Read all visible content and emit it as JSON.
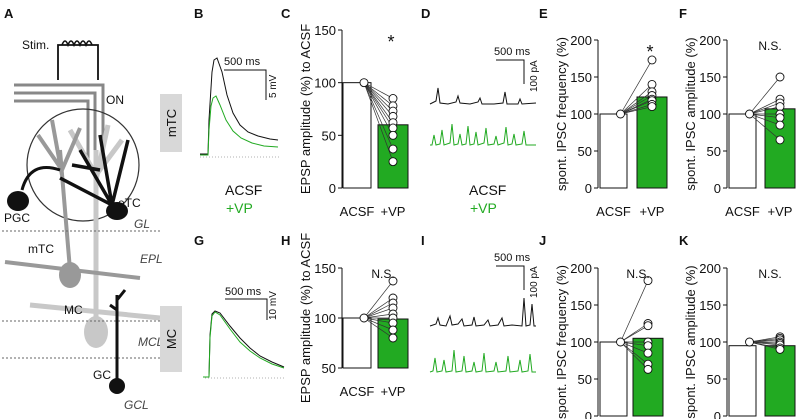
{
  "panel_letters": [
    "A",
    "B",
    "C",
    "D",
    "E",
    "F",
    "G",
    "H",
    "I",
    "J",
    "K"
  ],
  "schematic": {
    "stim": "Stim.",
    "on": "ON",
    "pgc": "PGC",
    "etc": "eTC",
    "gl": "GL",
    "mtc": "mTC",
    "epl": "EPL",
    "mc": "MC",
    "mcl": "MCL",
    "gc": "GC",
    "gcl": "GCL"
  },
  "row_labels": {
    "top": "mTC",
    "bottom": "MC"
  },
  "traces": {
    "b_time": "500 ms",
    "b_volt": "5 mV",
    "g_time": "500 ms",
    "g_volt": "10 mV",
    "d_time": "500 ms",
    "d_curr": "100 pA",
    "i_time": "500 ms",
    "i_curr": "100 pA"
  },
  "legends": {
    "top_acsf": "ACSF",
    "top_vp": "+VP",
    "mid_acsf": "ACSF",
    "mid_vp": "+VP"
  },
  "colors": {
    "green": "#22aa22",
    "black": "#111111",
    "gray": "#888888",
    "light_gray": "#c8c8c8"
  },
  "chart_data": [
    {
      "panel": "C",
      "type": "bar",
      "ylabel": "EPSP amplitude (%) to ACSF",
      "categories": [
        "ACSF",
        "+VP"
      ],
      "values": [
        100,
        60
      ],
      "ylim": [
        0,
        150
      ],
      "yticks": [
        0,
        50,
        100,
        150
      ],
      "points_vp": [
        85,
        78,
        73,
        68,
        62,
        57,
        50,
        37,
        25
      ],
      "significance": "*"
    },
    {
      "panel": "E",
      "type": "bar",
      "ylabel": "spont. IPSC frequency (%)",
      "categories": [
        "ACSF",
        "+VP"
      ],
      "values": [
        100,
        123
      ],
      "ylim": [
        0,
        200
      ],
      "yticks": [
        0,
        50,
        100,
        150,
        200
      ],
      "points_vp": [
        173,
        140,
        130,
        125,
        120,
        118,
        113,
        110
      ],
      "significance": "*"
    },
    {
      "panel": "F",
      "type": "bar",
      "ylabel": "spont. IPSC amplitude (%)",
      "categories": [
        "ACSF",
        "+VP"
      ],
      "values": [
        100,
        107
      ],
      "ylim": [
        0,
        200
      ],
      "yticks": [
        0,
        50,
        100,
        150,
        200
      ],
      "points_vp": [
        150,
        120,
        115,
        110,
        100,
        95,
        85,
        65
      ],
      "significance": "N.S."
    },
    {
      "panel": "H",
      "type": "bar",
      "ylabel": "EPSP amplitude (%) to ACSF",
      "categories": [
        "ACSF",
        "+VP"
      ],
      "values": [
        100,
        99
      ],
      "ylim": [
        50,
        150
      ],
      "yticks": [
        50,
        100,
        150
      ],
      "points_vp": [
        137,
        120,
        115,
        110,
        104,
        100,
        95,
        88,
        80
      ],
      "significance": "N.S."
    },
    {
      "panel": "J",
      "type": "bar",
      "ylabel": "spont. IPSC frequency (%)",
      "categories": [
        "ACSF",
        "+VP"
      ],
      "values": [
        100,
        105
      ],
      "ylim": [
        0,
        200
      ],
      "yticks": [
        0,
        50,
        100,
        150,
        200
      ],
      "points_vp": [
        183,
        125,
        122,
        100,
        95,
        85,
        70,
        63
      ],
      "significance": "N.S."
    },
    {
      "panel": "K",
      "type": "bar",
      "ylabel": "spont. IPSC amplitude (%)",
      "categories": [
        "ACSF",
        "+VP"
      ],
      "values": [
        95,
        95
      ],
      "ylim": [
        0,
        200
      ],
      "yticks": [
        0,
        50,
        100,
        150,
        200
      ],
      "points_vp": [
        107,
        105,
        103,
        100,
        98,
        96,
        92,
        90
      ],
      "significance": "N.S."
    }
  ]
}
